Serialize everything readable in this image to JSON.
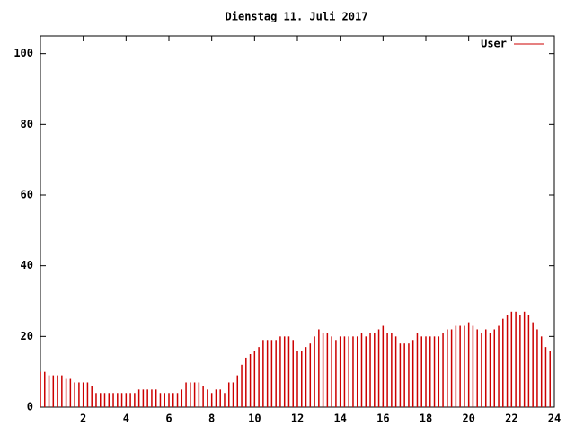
{
  "chart_data": {
    "type": "impulses",
    "title": "Dienstag 11. Juli 2017",
    "x": [
      0,
      0.2,
      0.4,
      0.6,
      0.8,
      1,
      1.2,
      1.4,
      1.6,
      1.8,
      2,
      2.2,
      2.4,
      2.6,
      2.8,
      3,
      3.2,
      3.4,
      3.6,
      3.8,
      4,
      4.2,
      4.4,
      4.6,
      4.8,
      5,
      5.2,
      5.4,
      5.6,
      5.8,
      6,
      6.2,
      6.4,
      6.6,
      6.8,
      7,
      7.2,
      7.4,
      7.6,
      7.8,
      8,
      8.2,
      8.4,
      8.6,
      8.8,
      9,
      9.2,
      9.4,
      9.6,
      9.8,
      10,
      10.2,
      10.4,
      10.6,
      10.8,
      11,
      11.2,
      11.4,
      11.6,
      11.8,
      12,
      12.2,
      12.4,
      12.6,
      12.8,
      13,
      13.2,
      13.4,
      13.6,
      13.8,
      14,
      14.2,
      14.4,
      14.6,
      14.8,
      15,
      15.2,
      15.4,
      15.6,
      15.8,
      16,
      16.2,
      16.4,
      16.6,
      16.8,
      17,
      17.2,
      17.4,
      17.6,
      17.8,
      18,
      18.2,
      18.4,
      18.6,
      18.8,
      19,
      19.2,
      19.4,
      19.6,
      19.8,
      20,
      20.2,
      20.4,
      20.6,
      20.8,
      21,
      21.2,
      21.4,
      21.6,
      21.8,
      22,
      22.2,
      22.4,
      22.6,
      22.8,
      23,
      23.2,
      23.4,
      23.6,
      23.8
    ],
    "series": [
      {
        "name": "User",
        "color": "#cc0000",
        "values": [
          10,
          10,
          9,
          9,
          9,
          9,
          8,
          8,
          7,
          7,
          7,
          7,
          6,
          4,
          4,
          4,
          4,
          4,
          4,
          4,
          4,
          4,
          4,
          5,
          5,
          5,
          5,
          5,
          4,
          4,
          4,
          4,
          4,
          5,
          7,
          7,
          7,
          7,
          6,
          5,
          4,
          5,
          5,
          4,
          7,
          7,
          9,
          12,
          14,
          15,
          16,
          17,
          19,
          19,
          19,
          19,
          20,
          20,
          20,
          19,
          16,
          16,
          17,
          18,
          20,
          22,
          21,
          21,
          20,
          19,
          20,
          20,
          20,
          20,
          20,
          21,
          20,
          21,
          21,
          22,
          23,
          21,
          21,
          20,
          18,
          18,
          18,
          19,
          21,
          20,
          20,
          20,
          20,
          20,
          21,
          22,
          22,
          23,
          23,
          23,
          24,
          23,
          22,
          21,
          22,
          21,
          22,
          23,
          25,
          26,
          27,
          27,
          26,
          27,
          26,
          24,
          22,
          20,
          17,
          16
        ]
      }
    ],
    "xlim": [
      0,
      24
    ],
    "xticks": [
      2,
      4,
      6,
      8,
      10,
      12,
      14,
      16,
      18,
      20,
      22,
      24
    ],
    "ylim": [
      0,
      105
    ],
    "yticks": [
      0,
      20,
      40,
      60,
      80,
      100
    ]
  }
}
